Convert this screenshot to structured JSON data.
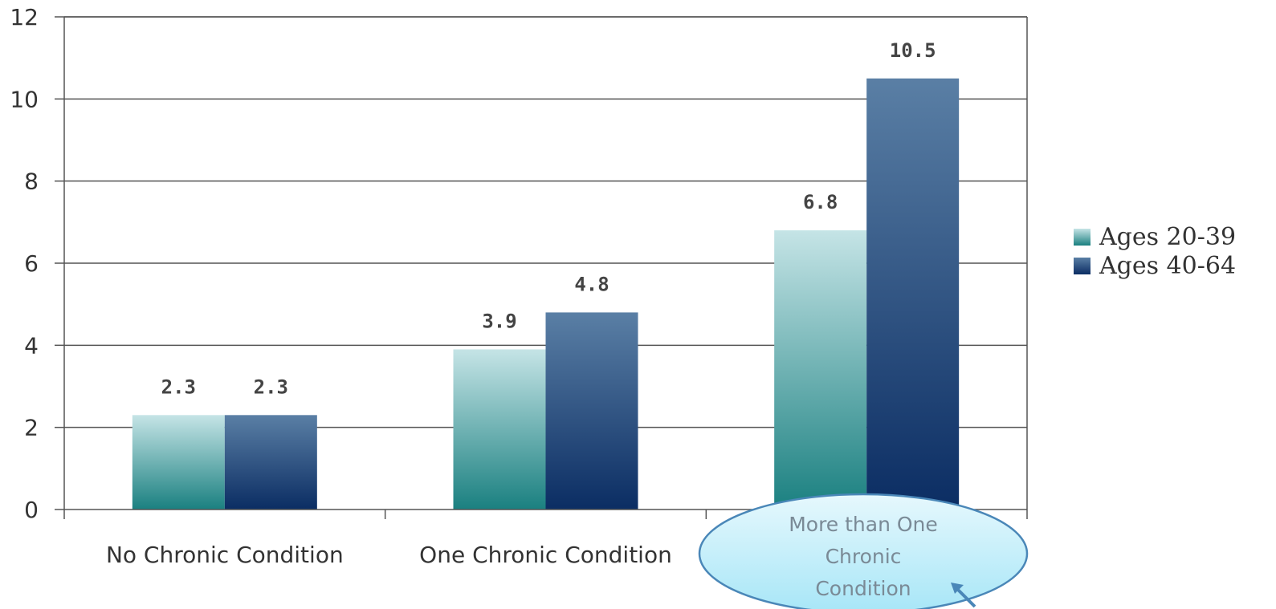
{
  "chart_data": {
    "type": "bar",
    "categories": [
      "No Chronic Condition",
      "One Chronic Condition",
      ""
    ],
    "series": [
      {
        "name": "Ages 20-39",
        "values": [
          2.3,
          3.9,
          6.8
        ]
      },
      {
        "name": "Ages 40-64",
        "values": [
          2.3,
          4.8,
          10.5
        ]
      }
    ],
    "data_labels": [
      [
        "2.3",
        "3.9",
        "6.8"
      ],
      [
        "2.3",
        "4.8",
        "10.5"
      ]
    ],
    "yticks": [
      "0",
      "2",
      "4",
      "6",
      "8",
      "10",
      "12"
    ],
    "ylim": [
      0,
      12
    ],
    "grid": true,
    "legend_position": "right",
    "colors": {
      "series1_top": "#c5e4e6",
      "series1_bottom": "#1a8080",
      "series2_top": "#5a7fa5",
      "series2_bottom": "#0b2d63",
      "grid": "#555555",
      "callout_fill_top": "#e6f8fd",
      "callout_fill_bottom": "#a7e6f7",
      "callout_stroke": "#4a87b8"
    },
    "callout": {
      "lines": [
        "More than One",
        "Chronic",
        "Condition"
      ]
    }
  }
}
